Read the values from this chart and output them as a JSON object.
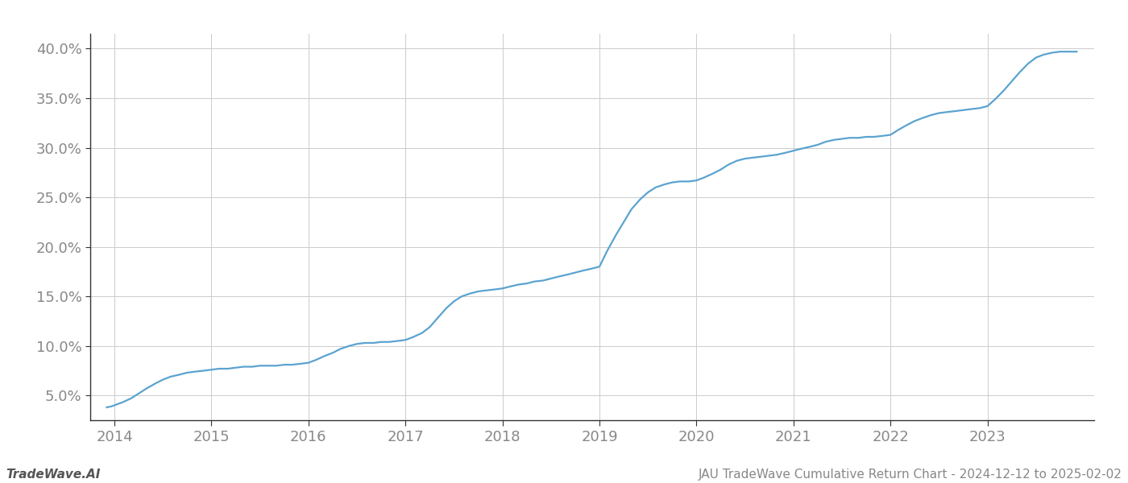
{
  "title": "JAU TradeWave Cumulative Return Chart - 2024-12-12 to 2025-02-02",
  "watermark": "TradeWave.AI",
  "line_color": "#5ba3d0",
  "background_color": "#ffffff",
  "grid_color": "#cccccc",
  "x_years": [
    2014,
    2015,
    2016,
    2017,
    2018,
    2019,
    2020,
    2021,
    2022,
    2023
  ],
  "x_data": [
    2013.92,
    2013.97,
    2014.08,
    2014.17,
    2014.25,
    2014.33,
    2014.42,
    2014.5,
    2014.58,
    2014.67,
    2014.75,
    2014.83,
    2014.92,
    2015.0,
    2015.08,
    2015.17,
    2015.25,
    2015.33,
    2015.42,
    2015.5,
    2015.58,
    2015.67,
    2015.75,
    2015.83,
    2015.92,
    2016.0,
    2016.08,
    2016.17,
    2016.25,
    2016.33,
    2016.42,
    2016.5,
    2016.58,
    2016.67,
    2016.75,
    2016.83,
    2016.92,
    2017.0,
    2017.08,
    2017.17,
    2017.25,
    2017.33,
    2017.42,
    2017.5,
    2017.58,
    2017.67,
    2017.75,
    2017.83,
    2017.92,
    2018.0,
    2018.08,
    2018.17,
    2018.25,
    2018.33,
    2018.42,
    2018.5,
    2018.58,
    2018.67,
    2018.75,
    2018.83,
    2018.92,
    2019.0,
    2019.08,
    2019.17,
    2019.25,
    2019.33,
    2019.42,
    2019.5,
    2019.58,
    2019.67,
    2019.75,
    2019.83,
    2019.92,
    2020.0,
    2020.08,
    2020.17,
    2020.25,
    2020.33,
    2020.42,
    2020.5,
    2020.58,
    2020.67,
    2020.75,
    2020.83,
    2020.92,
    2021.0,
    2021.08,
    2021.17,
    2021.25,
    2021.33,
    2021.42,
    2021.5,
    2021.58,
    2021.67,
    2021.75,
    2021.83,
    2021.92,
    2022.0,
    2022.08,
    2022.17,
    2022.25,
    2022.33,
    2022.42,
    2022.5,
    2022.58,
    2022.67,
    2022.75,
    2022.83,
    2022.92,
    2023.0,
    2023.08,
    2023.17,
    2023.25,
    2023.33,
    2023.42,
    2023.5,
    2023.58,
    2023.67,
    2023.75,
    2023.83,
    2023.92
  ],
  "y_data": [
    0.038,
    0.039,
    0.043,
    0.047,
    0.052,
    0.057,
    0.062,
    0.066,
    0.069,
    0.071,
    0.073,
    0.074,
    0.075,
    0.076,
    0.077,
    0.077,
    0.078,
    0.079,
    0.079,
    0.08,
    0.08,
    0.08,
    0.081,
    0.081,
    0.082,
    0.083,
    0.086,
    0.09,
    0.093,
    0.097,
    0.1,
    0.102,
    0.103,
    0.103,
    0.104,
    0.104,
    0.105,
    0.106,
    0.109,
    0.113,
    0.119,
    0.128,
    0.138,
    0.145,
    0.15,
    0.153,
    0.155,
    0.156,
    0.157,
    0.158,
    0.16,
    0.162,
    0.163,
    0.165,
    0.166,
    0.168,
    0.17,
    0.172,
    0.174,
    0.176,
    0.178,
    0.18,
    0.196,
    0.212,
    0.225,
    0.238,
    0.248,
    0.255,
    0.26,
    0.263,
    0.265,
    0.266,
    0.266,
    0.267,
    0.27,
    0.274,
    0.278,
    0.283,
    0.287,
    0.289,
    0.29,
    0.291,
    0.292,
    0.293,
    0.295,
    0.297,
    0.299,
    0.301,
    0.303,
    0.306,
    0.308,
    0.309,
    0.31,
    0.31,
    0.311,
    0.311,
    0.312,
    0.313,
    0.318,
    0.323,
    0.327,
    0.33,
    0.333,
    0.335,
    0.336,
    0.337,
    0.338,
    0.339,
    0.34,
    0.342,
    0.349,
    0.358,
    0.367,
    0.376,
    0.385,
    0.391,
    0.394,
    0.396,
    0.397,
    0.397,
    0.397
  ],
  "ylim": [
    0.025,
    0.415
  ],
  "yticks": [
    0.05,
    0.1,
    0.15,
    0.2,
    0.25,
    0.3,
    0.35,
    0.4
  ],
  "xlim": [
    2013.75,
    2024.1
  ],
  "line_width": 1.6,
  "tick_fontsize": 13,
  "label_color": "#888888",
  "spine_color": "#333333",
  "footer_fontsize": 11
}
